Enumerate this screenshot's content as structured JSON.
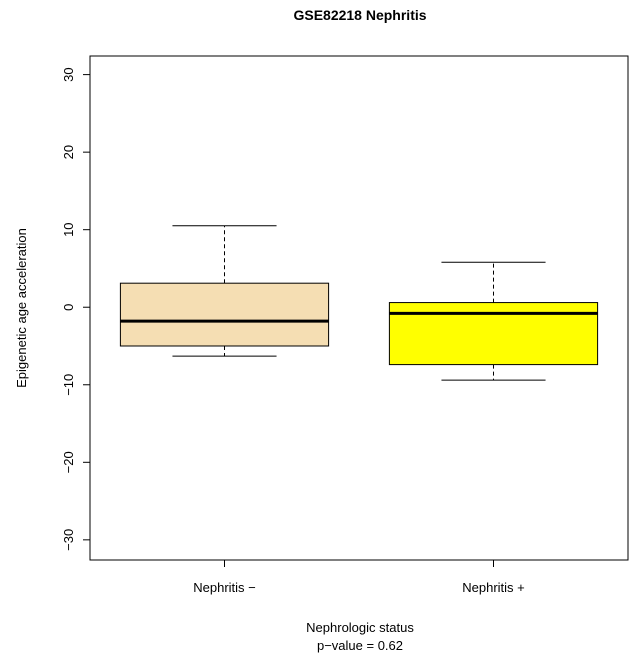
{
  "chart_data": {
    "type": "boxplot",
    "title": "GSE82218   Nephritis",
    "x_label": "Nephrologic status",
    "subtitle": "p−value = 0.62",
    "y_label": "Epigenetic age acceleration",
    "categories": [
      "Nephritis −",
      "Nephritis +"
    ],
    "colors": [
      "#f5deb3",
      "#ffff00"
    ],
    "boxes": [
      {
        "whislo": -6.3,
        "q1": -5.0,
        "med": -1.8,
        "q3": 3.1,
        "whishi": 10.5
      },
      {
        "whislo": -9.4,
        "q1": -7.4,
        "med": -0.8,
        "q3": 0.6,
        "whishi": 5.8
      }
    ],
    "ylim": [
      -32.6,
      32.4
    ],
    "yticks": [
      {
        "value": -30,
        "label": "−30"
      },
      {
        "value": -20,
        "label": "−20"
      },
      {
        "value": -10,
        "label": "−10"
      },
      0,
      10,
      20,
      30
    ]
  }
}
